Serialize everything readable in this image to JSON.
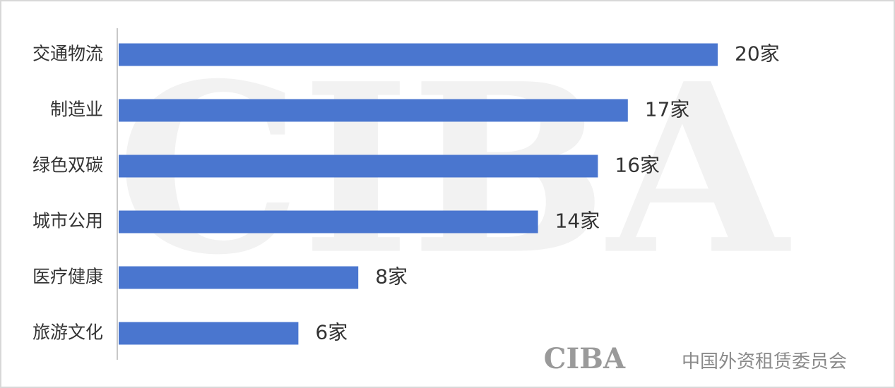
{
  "chart_data": {
    "type": "barh",
    "categories": [
      "交通物流",
      "制造业",
      "绿色双碳",
      "城市公用",
      "医疗健康",
      "旅游文化"
    ],
    "values": [
      20,
      17,
      16,
      14,
      8,
      6
    ],
    "value_labels": [
      "20家",
      "17家",
      "16家",
      "14家",
      "8家",
      "6家"
    ],
    "color": "#4a76cf",
    "watermark": "CIBA",
    "logo": "CIBA",
    "logo_text": "中国外资租赁委员会"
  }
}
